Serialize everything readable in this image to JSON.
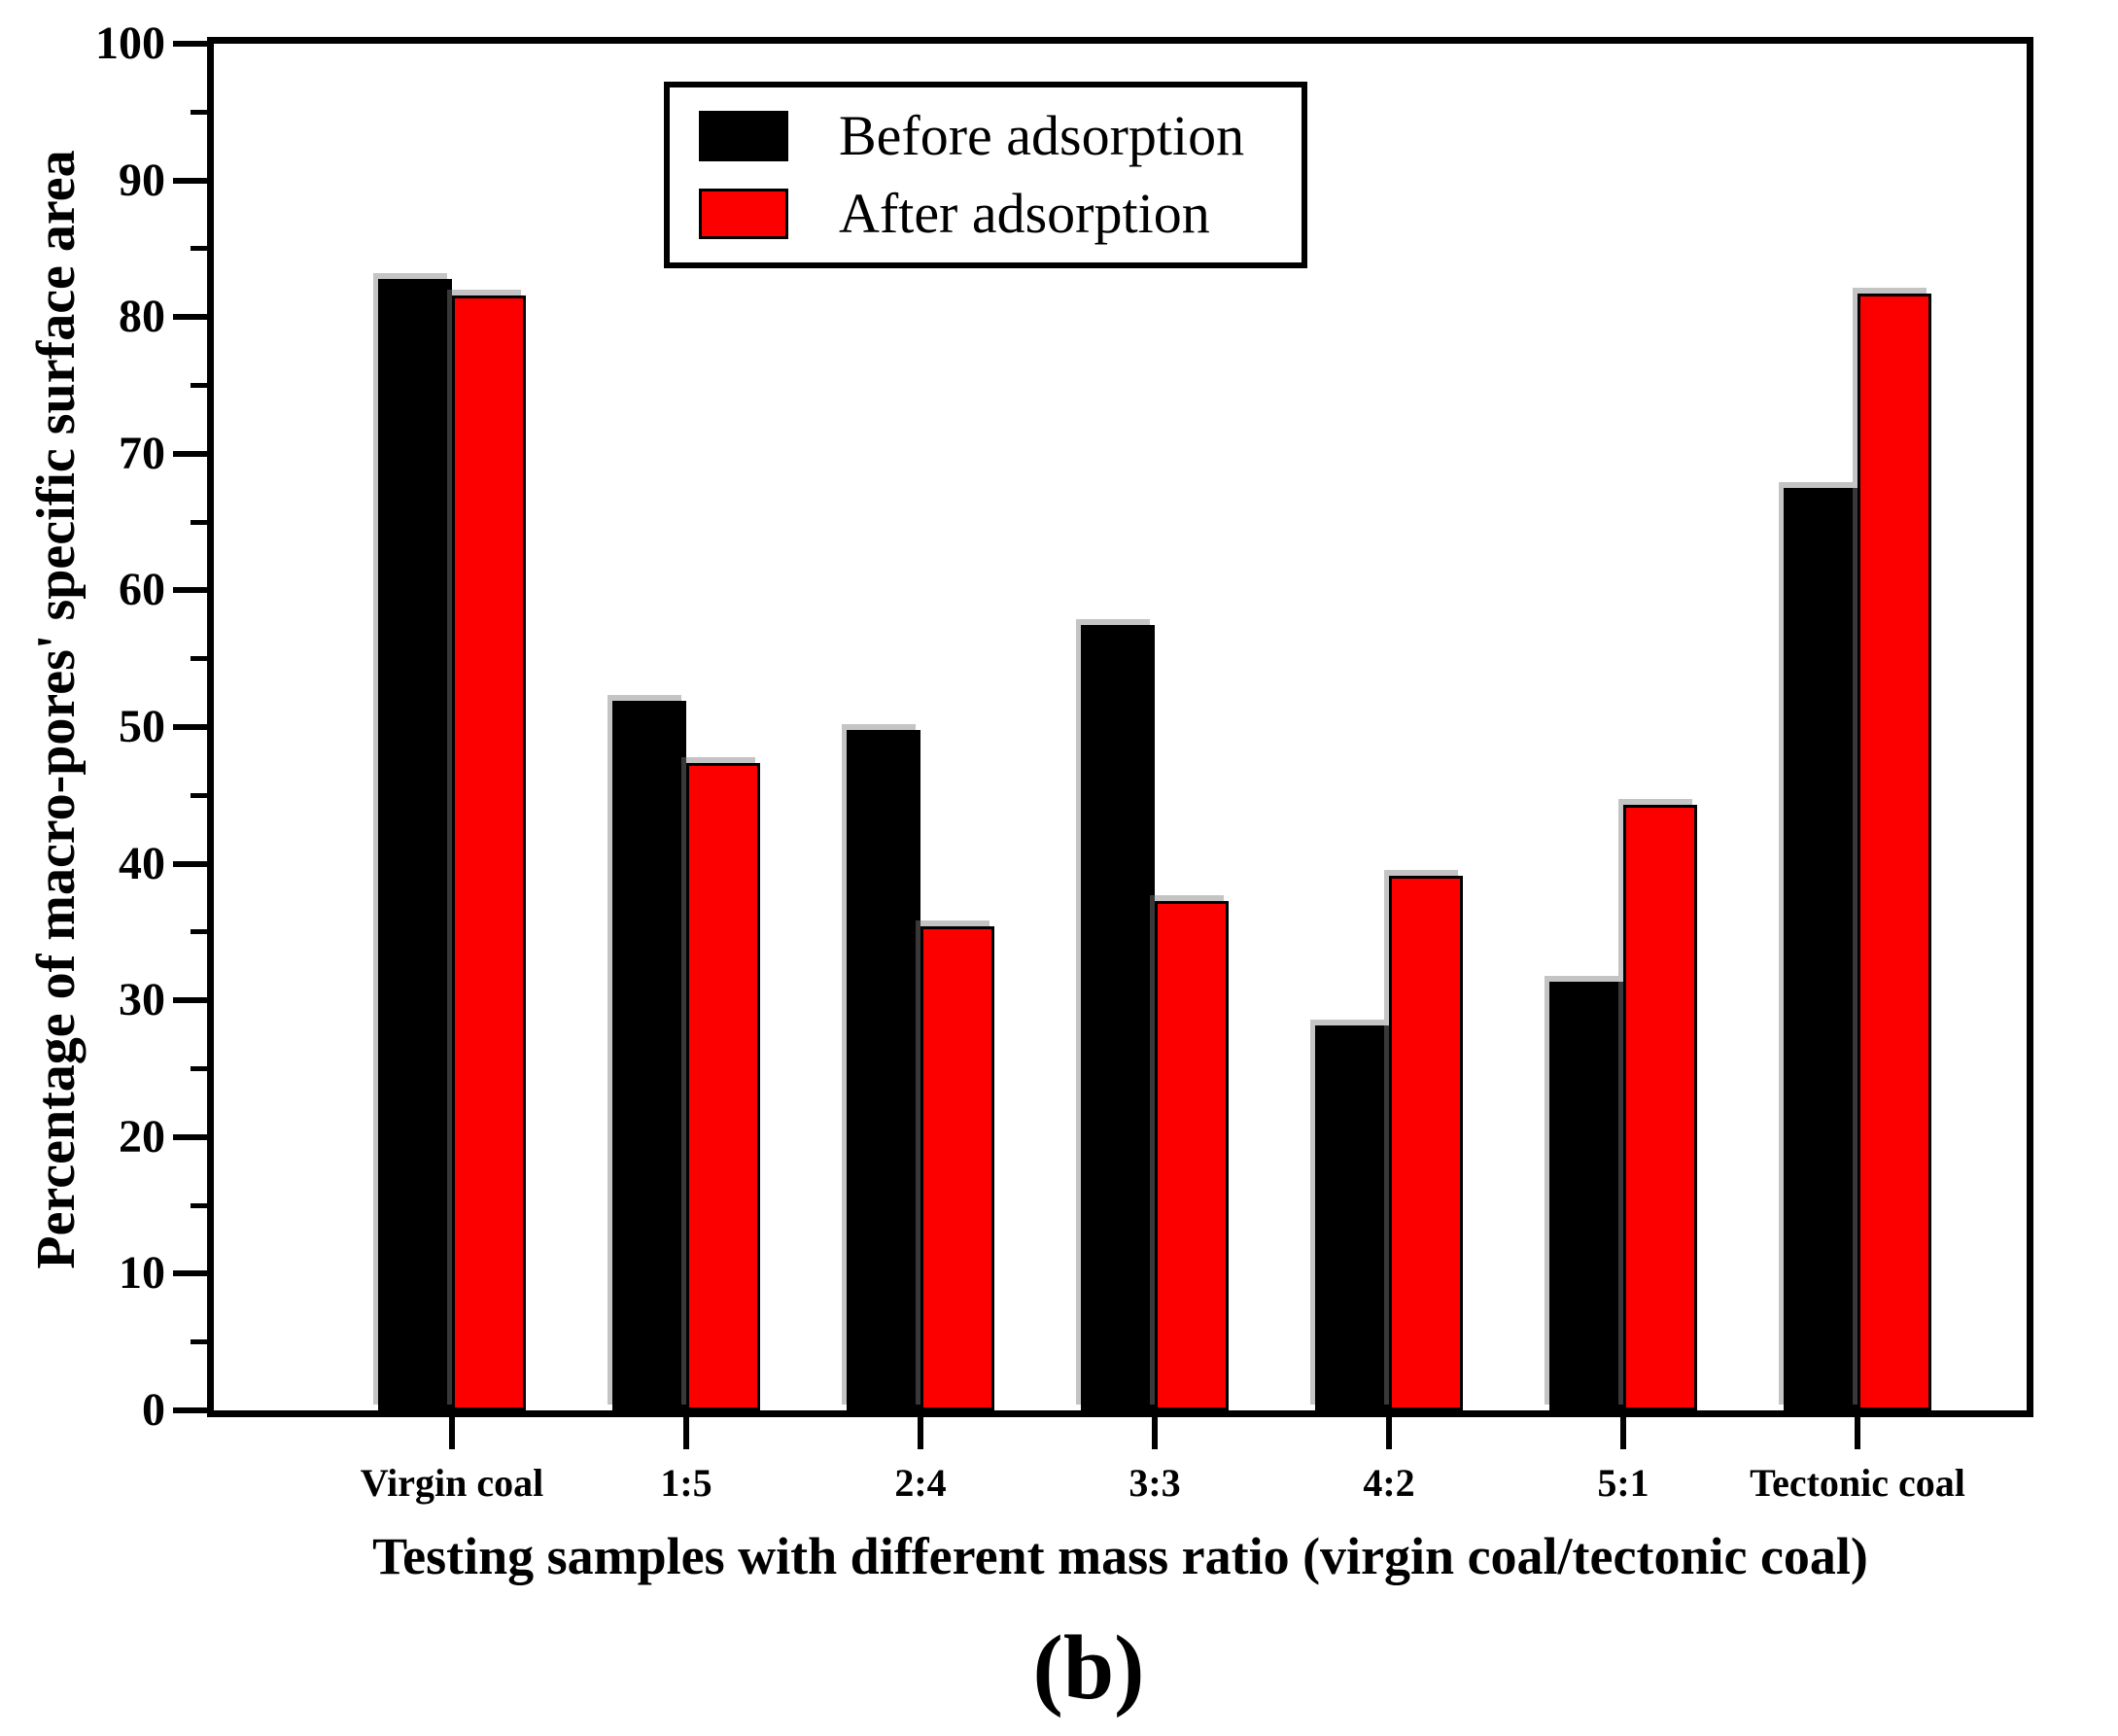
{
  "caption": "(b)",
  "chart_data": {
    "type": "bar",
    "title": "",
    "categories": [
      "Virgin coal",
      "1:5",
      "2:4",
      "3:3",
      "4:2",
      "5:1",
      "Tectonic coal"
    ],
    "series": [
      {
        "name": "Before adsorption",
        "color": "#000000",
        "values": [
          82.8,
          51.9,
          49.8,
          57.5,
          28.2,
          31.4,
          67.5
        ]
      },
      {
        "name": "After adsorption",
        "color": "#fc0000",
        "values": [
          81.6,
          47.4,
          35.4,
          37.3,
          39.1,
          44.3,
          81.7
        ]
      }
    ],
    "xlabel": "Testing samples with different mass ratio (virgin coal/tectonic coal)",
    "ylabel": "Percentage of macro-pores' specific surface area",
    "ylim": [
      0,
      100
    ],
    "y_major_step": 10,
    "y_minor_step": 5,
    "y_tick_labels": [
      "0",
      "10",
      "20",
      "30",
      "40",
      "50",
      "60",
      "70",
      "80",
      "90",
      "100"
    ],
    "grid": false,
    "legend_position": "top-center-inside",
    "bar_outline_color": "#000000"
  }
}
